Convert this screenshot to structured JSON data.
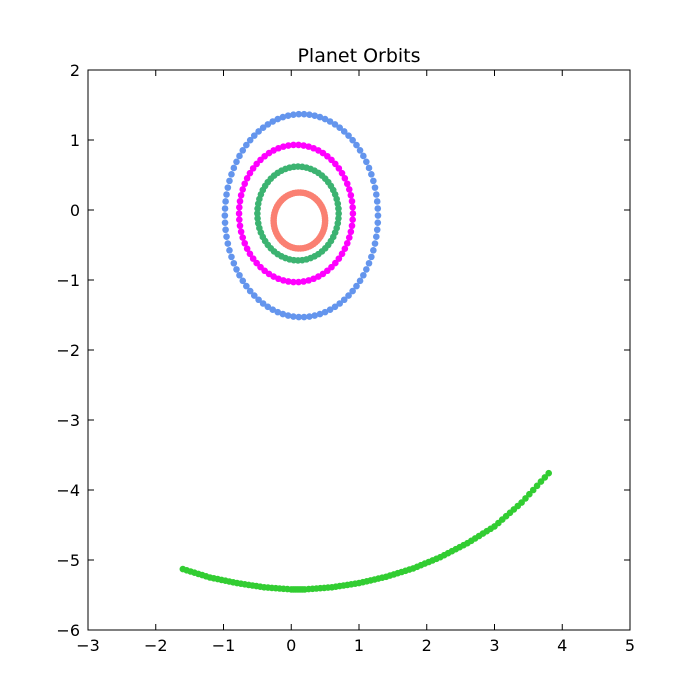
{
  "chart_data": {
    "type": "scatter",
    "title": "Planet Orbits",
    "xlabel": "",
    "ylabel": "",
    "xlim": [
      -3,
      5
    ],
    "ylim": [
      -6,
      2
    ],
    "x_ticks": [
      -3,
      -2,
      -1,
      0,
      1,
      2,
      3,
      4,
      5
    ],
    "y_ticks": [
      -6,
      -5,
      -4,
      -3,
      -2,
      -1,
      0,
      1,
      2
    ],
    "x_tick_labels": [
      "−3",
      "−2",
      "−1",
      "0",
      "1",
      "2",
      "3",
      "4",
      "5"
    ],
    "y_tick_labels": [
      "−6",
      "−5",
      "−4",
      "−3",
      "−2",
      "−1",
      "0",
      "1",
      "2"
    ],
    "grid": false,
    "series": [
      {
        "color": "#6495ed",
        "shape": "ellipse",
        "center": [
          0.15,
          -0.08
        ],
        "radius_x": 1.13,
        "radius_y": 1.45,
        "points": 90
      },
      {
        "color": "#ff00ff",
        "shape": "ellipse",
        "center": [
          0.07,
          -0.05
        ],
        "radius_x": 0.84,
        "radius_y": 0.98,
        "points": 70
      },
      {
        "color": "#3cb371",
        "shape": "ellipse",
        "center": [
          0.1,
          -0.05
        ],
        "radius_x": 0.6,
        "radius_y": 0.67,
        "points": 60
      },
      {
        "color": "#fa8072",
        "shape": "ellipse",
        "center": [
          0.12,
          -0.15
        ],
        "radius_x": 0.38,
        "radius_y": 0.4,
        "points": 70
      },
      {
        "color": "#32cd32",
        "shape": "arc",
        "x": [
          -1.6,
          -1.2,
          -0.8,
          -0.4,
          0.0,
          0.2,
          0.6,
          1.0,
          1.4,
          1.8,
          2.2,
          2.6,
          3.0,
          3.4,
          3.8
        ],
        "y": [
          -5.13,
          -5.25,
          -5.33,
          -5.39,
          -5.42,
          -5.42,
          -5.39,
          -5.33,
          -5.24,
          -5.12,
          -4.96,
          -4.76,
          -4.52,
          -4.18,
          -3.76
        ]
      }
    ]
  }
}
